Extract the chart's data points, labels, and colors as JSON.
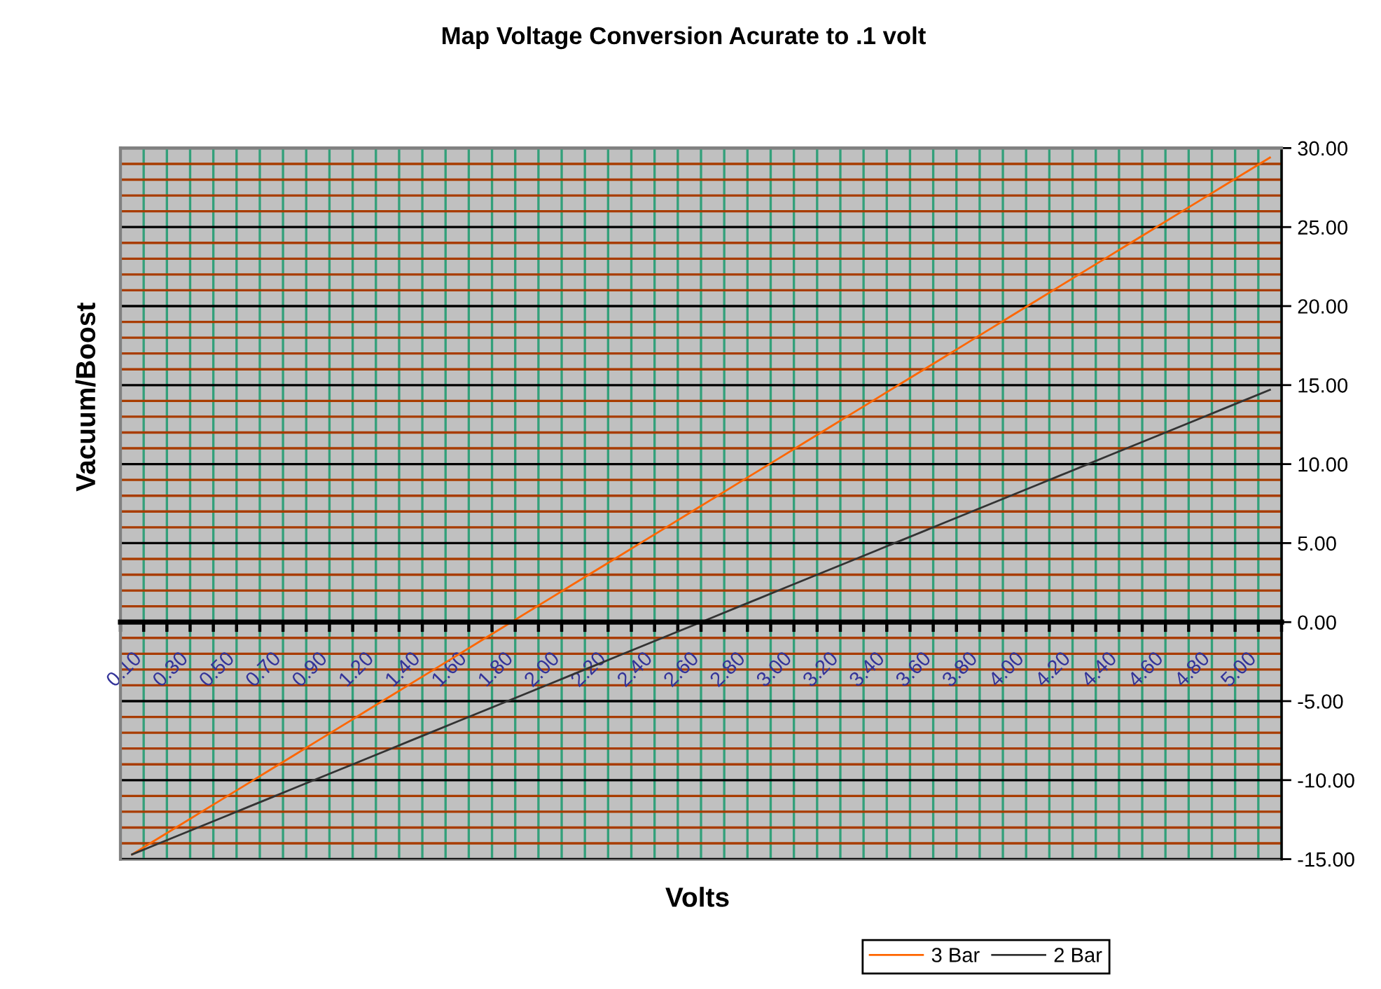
{
  "chart_data": {
    "type": "line",
    "title": "Map Voltage Conversion Acurate to .1 volt",
    "xlabel": "Volts",
    "ylabel": "Vacuum/Boost",
    "categories": [
      "0.10",
      null,
      "0.30",
      null,
      "0.50",
      null,
      "0.70",
      null,
      "0.90",
      null,
      "1.20",
      null,
      "1.40",
      null,
      "1.60",
      null,
      "1.80",
      null,
      "2.00",
      null,
      "2.20",
      null,
      "2.40",
      null,
      "2.60",
      null,
      "2.80",
      null,
      "3.00",
      null,
      "3.20",
      null,
      "3.40",
      null,
      "3.60",
      null,
      "3.80",
      null,
      "4.00",
      null,
      "4.20",
      null,
      "4.40",
      null,
      "4.60",
      null,
      "4.80",
      null,
      "5.00",
      null
    ],
    "series": [
      {
        "name": "3 Bar",
        "color": "#ff6600",
        "values": [
          -14.7,
          -13.8,
          -12.9,
          -12.0,
          -11.1,
          -10.2,
          -9.3,
          -8.4,
          -7.5,
          -6.6,
          -5.7,
          -4.8,
          -3.9,
          -3.0,
          -2.1,
          -1.2,
          -0.3,
          0.6,
          1.5,
          2.4,
          3.3,
          4.2,
          5.1,
          6.0,
          6.9,
          7.8,
          8.7,
          9.6,
          10.5,
          11.4,
          12.3,
          13.2,
          14.1,
          15.0,
          15.9,
          16.8,
          17.7,
          18.6,
          19.5,
          20.4,
          21.3,
          22.2,
          23.1,
          24.0,
          24.9,
          25.8,
          26.7,
          27.6,
          28.5,
          29.4
        ]
      },
      {
        "name": "2 Bar",
        "color": "#333333",
        "values": [
          -14.7,
          -14.1,
          -13.5,
          -12.9,
          -12.3,
          -11.7,
          -11.1,
          -10.5,
          -9.9,
          -9.3,
          -8.7,
          -8.1,
          -7.5,
          -6.9,
          -6.3,
          -5.7,
          -5.1,
          -4.5,
          -3.9,
          -3.3,
          -2.7,
          -2.1,
          -1.5,
          -0.9,
          -0.3,
          0.3,
          0.9,
          1.5,
          2.1,
          2.7,
          3.3,
          3.9,
          4.5,
          5.1,
          5.7,
          6.3,
          6.9,
          7.5,
          8.1,
          8.7,
          9.3,
          9.9,
          10.5,
          11.1,
          11.7,
          12.3,
          12.9,
          13.5,
          14.1,
          14.7
        ]
      }
    ],
    "ylim": [
      -15,
      30
    ],
    "yticks": [
      {
        "value": -15,
        "label": "-15.00"
      },
      {
        "value": -14,
        "label": null
      },
      {
        "value": -13,
        "label": null
      },
      {
        "value": -12,
        "label": null
      },
      {
        "value": -11,
        "label": null
      },
      {
        "value": -10,
        "label": "-10.00"
      },
      {
        "value": -9,
        "label": null
      },
      {
        "value": -8,
        "label": null
      },
      {
        "value": -7,
        "label": null
      },
      {
        "value": -6,
        "label": null
      },
      {
        "value": -5,
        "label": "-5.00"
      },
      {
        "value": -4,
        "label": null
      },
      {
        "value": -3,
        "label": null
      },
      {
        "value": -2,
        "label": null
      },
      {
        "value": -1,
        "label": null
      },
      {
        "value": 0,
        "label": "0.00"
      },
      {
        "value": 1,
        "label": null
      },
      {
        "value": 2,
        "label": null
      },
      {
        "value": 3,
        "label": null
      },
      {
        "value": 4,
        "label": null
      },
      {
        "value": 5,
        "label": "5.00"
      },
      {
        "value": 6,
        "label": null
      },
      {
        "value": 7,
        "label": null
      },
      {
        "value": 8,
        "label": null
      },
      {
        "value": 9,
        "label": null
      },
      {
        "value": 10,
        "label": "10.00"
      },
      {
        "value": 11,
        "label": null
      },
      {
        "value": 12,
        "label": null
      },
      {
        "value": 13,
        "label": null
      },
      {
        "value": 14,
        "label": null
      },
      {
        "value": 15,
        "label": "15.00"
      },
      {
        "value": 16,
        "label": null
      },
      {
        "value": 17,
        "label": null
      },
      {
        "value": 18,
        "label": null
      },
      {
        "value": 19,
        "label": null
      },
      {
        "value": 20,
        "label": "20.00"
      },
      {
        "value": 21,
        "label": null
      },
      {
        "value": 22,
        "label": null
      },
      {
        "value": 23,
        "label": null
      },
      {
        "value": 24,
        "label": null
      },
      {
        "value": 25,
        "label": "25.00"
      },
      {
        "value": 26,
        "label": null
      },
      {
        "value": 27,
        "label": null
      },
      {
        "value": 28,
        "label": null
      },
      {
        "value": 29,
        "label": null
      },
      {
        "value": 30,
        "label": "30.00"
      }
    ],
    "grid": true,
    "legend": "bottom"
  }
}
